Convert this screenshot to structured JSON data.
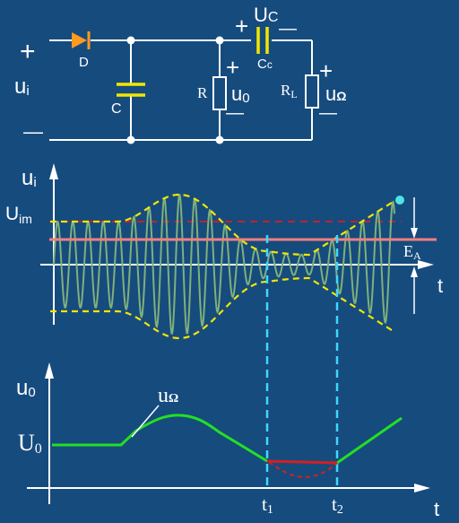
{
  "circuit": {
    "input_plus": "+",
    "input_label": "u",
    "input_label_sub": "i",
    "input_minus": "—",
    "diode_label": "D",
    "cap_c_label": "C",
    "resistor_r_label": "R",
    "output_plus": "+",
    "output_label": "u",
    "output_label_sub": "0",
    "output_minus": "—",
    "coupling_plus": "+",
    "coupling_voltage_label": "U",
    "coupling_voltage_sub": "C",
    "coupling_minus": "—",
    "coupling_cap_label": "C",
    "coupling_cap_sub": "c",
    "load_label": "R",
    "load_label_sub": "L",
    "load_plus": "+",
    "load_output_label": "u",
    "load_output_sub": "Ω",
    "load_minus": "—"
  },
  "input_plot": {
    "y_label": "u",
    "y_label_sub": "i",
    "amplitude_label": "U",
    "amplitude_label_sub": "im",
    "threshold_label": "E",
    "threshold_label_sub": "A",
    "t_label": "t"
  },
  "output_plot": {
    "y_label": "u",
    "y_label_sub": "0",
    "envelope_label": "u",
    "envelope_label_sub": "Ω",
    "dc_label": "U",
    "dc_label_sub": "0",
    "t_label": "t",
    "t1_label": "t",
    "t1_sub": "1",
    "t2_label": "t",
    "t2_sub": "2"
  },
  "colors": {
    "background": "#164b7e",
    "wire": "#ffffff",
    "diode": "#ff9a1f",
    "capacitor": "#f2e600",
    "envelope": "#f2e600",
    "carrier": "#7fb07a",
    "threshold_line": "#f08080",
    "peak_dashed": "#d42020",
    "guide_dashed": "#3fd8ff",
    "output_curve": "#22e022",
    "clipped_curve": "#d42020"
  }
}
